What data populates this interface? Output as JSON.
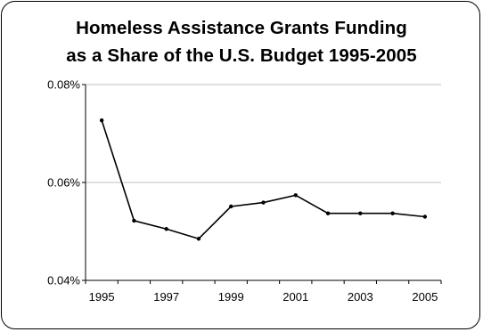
{
  "chart_data": {
    "type": "line",
    "title_line1": "Homeless Assistance Grants Funding",
    "title_line2": "as a Share of the U.S. Budget 1995-2005",
    "xlabel": "",
    "ylabel": "",
    "x": [
      1995,
      1996,
      1997,
      1998,
      1999,
      2000,
      2001,
      2002,
      2003,
      2004,
      2005
    ],
    "series": [
      {
        "values": [
          0.0727,
          0.0522,
          0.0505,
          0.0485,
          0.0551,
          0.0559,
          0.0574,
          0.0537,
          0.0537,
          0.0537,
          0.053
        ]
      }
    ],
    "ylim": [
      0.04,
      0.08
    ],
    "y_ticks": [
      {
        "value": 0.04,
        "label": "0.04%"
      },
      {
        "value": 0.06,
        "label": "0.06%"
      },
      {
        "value": 0.08,
        "label": "0.08%"
      }
    ],
    "x_tick_labels": [
      {
        "value": 1995,
        "label": "1995"
      },
      {
        "value": 1997,
        "label": "1997"
      },
      {
        "value": 1999,
        "label": "1999"
      },
      {
        "value": 2001,
        "label": "2001"
      },
      {
        "value": 2003,
        "label": "2003"
      },
      {
        "value": 2005,
        "label": "2005"
      }
    ],
    "grid": true,
    "legend": "none",
    "line_color": "#000000",
    "grid_color": "#c0c0c0"
  }
}
